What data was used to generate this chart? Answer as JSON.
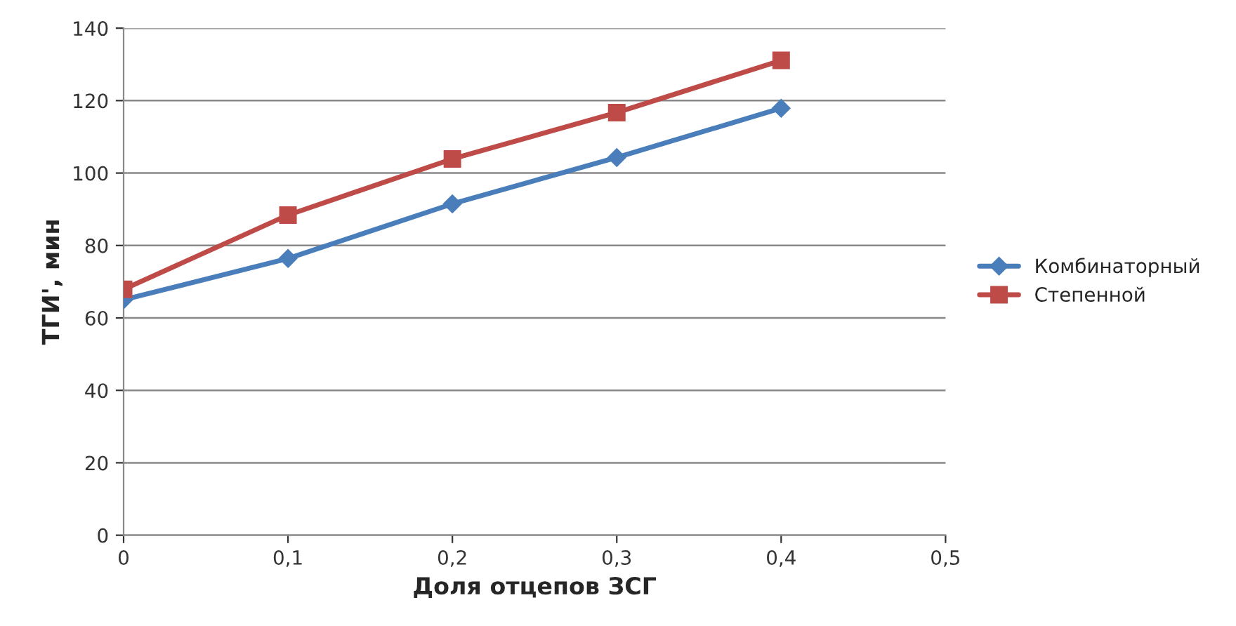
{
  "chart_data": {
    "type": "line",
    "xlabel": "Доля отцепов ЗСГ",
    "ylabel": "ТГИ', мин",
    "x": [
      0,
      0.1,
      0.2,
      0.3,
      0.4
    ],
    "series": [
      {
        "name": "Комбинаторный",
        "color": "#4a7ebb",
        "marker": "diamond",
        "values": [
          65,
          76.4,
          91.5,
          104.3,
          117.9
        ]
      },
      {
        "name": "Степенной",
        "color": "#be4b48",
        "marker": "square",
        "values": [
          67.9,
          88.4,
          103.9,
          116.7,
          131.1
        ]
      }
    ],
    "xlim": [
      0,
      0.5
    ],
    "xticks": [
      0,
      {
        "value": 0.1,
        "label": "0,1"
      },
      {
        "value": 0.2,
        "label": "0,2"
      },
      {
        "value": 0.3,
        "label": "0,3"
      },
      {
        "value": 0.4,
        "label": "0,4"
      },
      {
        "value": 0.5,
        "label": "0,5"
      }
    ],
    "ylim": [
      0,
      140
    ],
    "yticks": [
      0,
      20,
      40,
      60,
      80,
      100,
      120,
      140
    ],
    "grid": "y",
    "legend": "right",
    "line_style": "solid"
  }
}
